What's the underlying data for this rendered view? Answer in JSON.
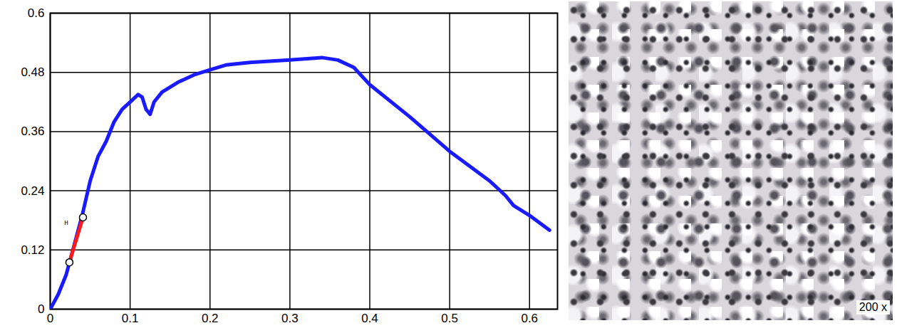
{
  "chart_data": {
    "type": "line",
    "xlim": [
      0,
      0.635
    ],
    "xticks": [
      0,
      0.1,
      0.2,
      0.3,
      0.4,
      0.5,
      0.6
    ],
    "ylim": [
      0,
      0.6
    ],
    "yticks": [
      0,
      0.12,
      0.24,
      0.36,
      0.48,
      0.6
    ],
    "grid": true,
    "series": [
      {
        "color": "#1a1aff",
        "line_style": "solid",
        "x": [
          0,
          0.01,
          0.02,
          0.03,
          0.04,
          0.05,
          0.06,
          0.07,
          0.08,
          0.09,
          0.1,
          0.11,
          0.115,
          0.12,
          0.125,
          0.13,
          0.14,
          0.16,
          0.18,
          0.2,
          0.22,
          0.25,
          0.3,
          0.34,
          0.36,
          0.38,
          0.4,
          0.45,
          0.5,
          0.55,
          0.57,
          0.58,
          0.6,
          0.625
        ],
        "values": [
          0,
          0.03,
          0.07,
          0.13,
          0.19,
          0.26,
          0.31,
          0.34,
          0.38,
          0.405,
          0.42,
          0.435,
          0.43,
          0.405,
          0.395,
          0.42,
          0.44,
          0.46,
          0.475,
          0.485,
          0.495,
          0.5,
          0.505,
          0.51,
          0.505,
          0.49,
          0.455,
          0.39,
          0.32,
          0.26,
          0.23,
          0.21,
          0.19,
          0.16
        ]
      },
      {
        "color": "#ff1a1a",
        "line_style": "solid",
        "marker": "circle",
        "x": [
          0.024,
          0.041
        ],
        "values": [
          0.095,
          0.186
        ]
      }
    ],
    "annotations": [
      {
        "text": "н",
        "x": 0.02,
        "y": 0.175
      }
    ]
  },
  "micrograph": {
    "label": "200 x"
  }
}
